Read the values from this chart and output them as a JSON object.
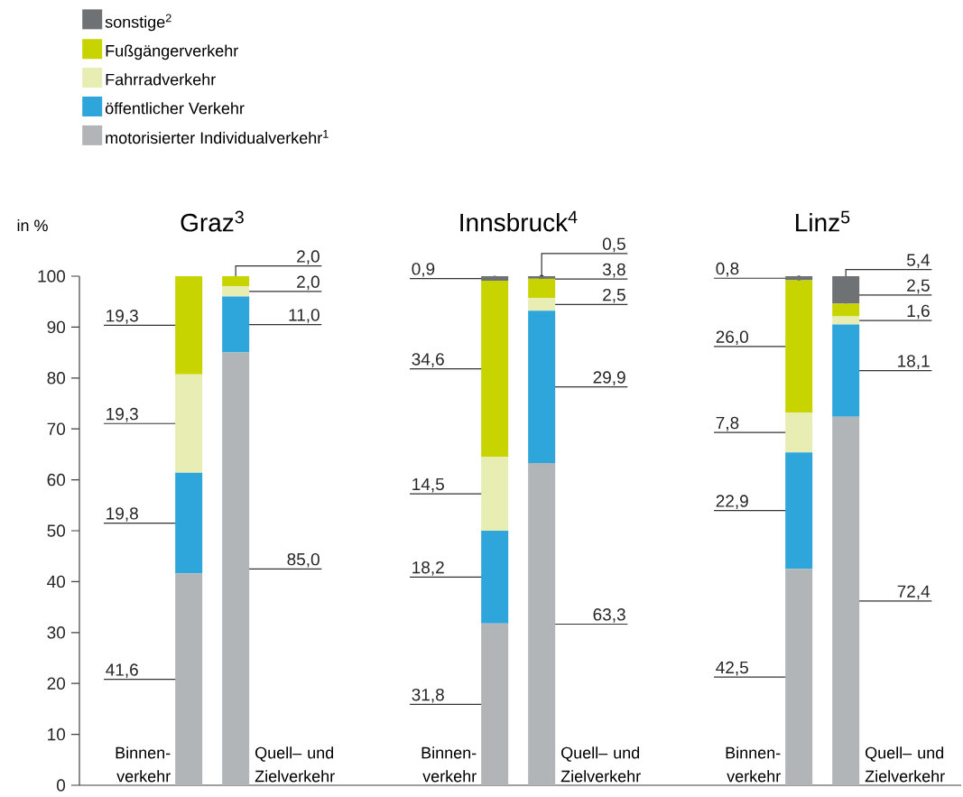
{
  "chart_data": [
    {
      "type": "bar",
      "stacked": true,
      "title": "Graz$^{3}$",
      "ylabel": "in %",
      "categories": [
        "Binnen- verkehr",
        "Quell– und Zielverkehr"
      ],
      "ylim": [
        0,
        100
      ],
      "yticks": [
        0,
        10,
        20,
        30,
        40,
        50,
        60,
        70,
        80,
        90,
        100
      ],
      "legend": "top left",
      "series": [
        {
          "name": "motorisierter Individualverkehr$^{1}$",
          "color": "#b1b5b8",
          "values": [
            41.6,
            85.0
          ],
          "value_labels": [
            "41,6",
            "85,0"
          ]
        },
        {
          "name": "öffentlicher Verkehr",
          "color": "#2ea6dc",
          "values": [
            19.8,
            11.0
          ],
          "value_labels": [
            "19,8",
            "11,0"
          ]
        },
        {
          "name": "Fahrradverkehr",
          "color": "#e8edb4",
          "values": [
            19.3,
            2.0
          ],
          "value_labels": [
            "19,3",
            "2,0"
          ]
        },
        {
          "name": "Fußgängerverkehr",
          "color": "#c8d400",
          "values": [
            19.3,
            2.0
          ],
          "value_labels": [
            "19,3",
            "2,0"
          ]
        },
        {
          "name": "sonstige$^{2}$",
          "color": "#6e7274",
          "values": [
            null,
            null
          ],
          "value_labels": [
            null,
            null
          ]
        }
      ]
    },
    {
      "type": "bar",
      "stacked": true,
      "title": "Innsbruck$^{4}$",
      "categories": [
        "Binnen- verkehr",
        "Quell– und Zielverkehr"
      ],
      "ylim": [
        0,
        100
      ],
      "tick_labels": "x",
      "series": [
        {
          "color": "#b1b5b8",
          "values": [
            31.8,
            63.3
          ],
          "value_labels": [
            "31,8",
            "63,3"
          ]
        },
        {
          "color": "#2ea6dc",
          "values": [
            18.2,
            29.9
          ],
          "value_labels": [
            "18,2",
            "29,9"
          ]
        },
        {
          "color": "#e8edb4",
          "values": [
            14.5,
            2.5
          ],
          "value_labels": [
            "14,5",
            "2,5"
          ]
        },
        {
          "color": "#c8d400",
          "values": [
            34.6,
            3.8
          ],
          "value_labels": [
            "34,6",
            "3,8"
          ]
        },
        {
          "color": "#6e7274",
          "values": [
            0.9,
            0.5
          ],
          "value_labels": [
            "0,9",
            "0,5"
          ]
        }
      ]
    },
    {
      "type": "bar",
      "stacked": true,
      "title": "Linz$^{5}$",
      "categories": [
        "Binnen- verkehr",
        "Quell– und Zielverkehr"
      ],
      "ylim": [
        0,
        100
      ],
      "tick_labels": "x",
      "series": [
        {
          "color": "#b1b5b8",
          "values": [
            42.5,
            72.4
          ],
          "value_labels": [
            "42,5",
            "72,4"
          ]
        },
        {
          "color": "#2ea6dc",
          "values": [
            22.9,
            18.1
          ],
          "value_labels": [
            "22,9",
            "18,1"
          ]
        },
        {
          "color": "#e8edb4",
          "values": [
            7.8,
            1.6
          ],
          "value_labels": [
            "7,8",
            "1,6"
          ]
        },
        {
          "color": "#c8d400",
          "values": [
            26.0,
            2.5
          ],
          "value_labels": [
            "26,0",
            "2,5"
          ]
        },
        {
          "color": "#6e7274",
          "values": [
            0.8,
            5.4
          ],
          "value_labels": [
            "0,8",
            "5,4"
          ]
        }
      ]
    }
  ]
}
